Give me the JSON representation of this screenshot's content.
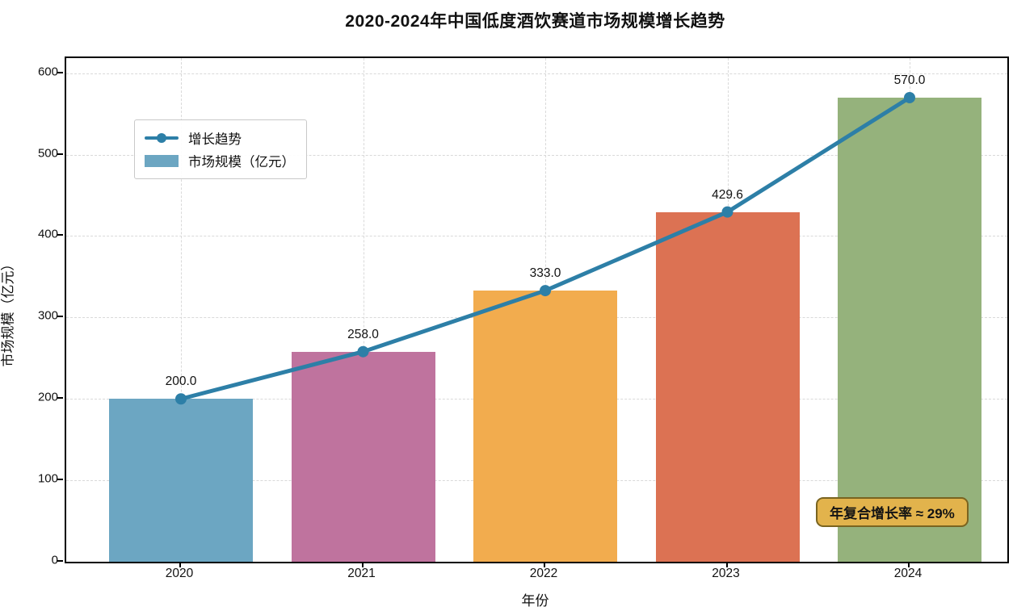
{
  "chart_data": {
    "type": "bar",
    "title": "2020-2024年中国低度酒饮赛道市场规模增长趋势",
    "categories": [
      "2020",
      "2021",
      "2022",
      "2023",
      "2024"
    ],
    "series": [
      {
        "name": "市场规模（亿元）",
        "kind": "bar",
        "values": [
          200.0,
          258.0,
          333.0,
          429.6,
          570.0
        ],
        "colors": [
          "#6ca6c2",
          "#bf739e",
          "#f2ac4e",
          "#dc7253",
          "#95b27c"
        ]
      },
      {
        "name": "增长趋势",
        "kind": "line",
        "values": [
          200.0,
          258.0,
          333.0,
          429.6,
          570.0
        ],
        "color": "#2d7fa7"
      }
    ],
    "point_labels": [
      "200.0",
      "258.0",
      "333.0",
      "429.6",
      "570.0"
    ],
    "xlabel": "年份",
    "ylabel": "市场规模（亿元）",
    "ylim": [
      0,
      619
    ],
    "yticks": [
      0,
      100,
      200,
      300,
      400,
      500,
      600
    ],
    "grid": {
      "style": "dashed",
      "axes": "both",
      "color": "#d9d9d9"
    },
    "legend": {
      "position": "upper-left",
      "entries": [
        "增长趋势",
        "市场规模（亿元）"
      ]
    },
    "annotation": {
      "text": "年复合增长率 ≈ 29%",
      "bg": "#e2b34c",
      "border": "#7a6420"
    }
  }
}
